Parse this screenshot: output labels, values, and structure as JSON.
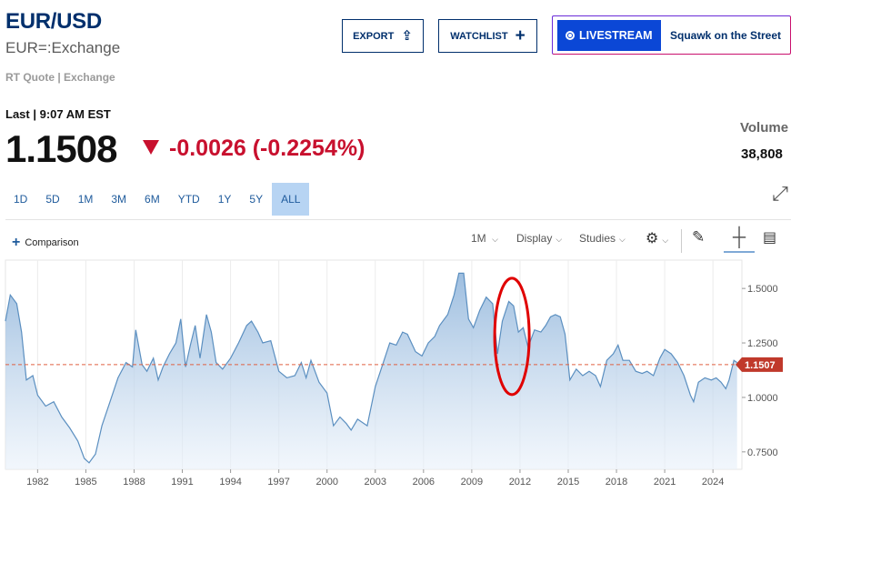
{
  "header": {
    "title": "EUR/USD",
    "subtitle": "EUR=:Exchange",
    "quote_source": "RT Quote | Exchange"
  },
  "actions": {
    "export_label": "EXPORT",
    "export_icon": "share-icon",
    "watchlist_label": "WATCHLIST",
    "watchlist_icon": "plus-icon"
  },
  "livestream": {
    "label": "LIVESTREAM",
    "show": "Squawk on the Street",
    "accent": "#0b47d6"
  },
  "quote": {
    "last_label": "Last | 9:07 AM EST",
    "price": "1.1508",
    "change": "-0.0026 (-0.2254%)",
    "direction_icon": "down-triangle-icon",
    "change_color": "#c8102e",
    "volume_label": "Volume",
    "volume_value": "38,808"
  },
  "ranges": [
    {
      "label": "1D",
      "active": false
    },
    {
      "label": "5D",
      "active": false
    },
    {
      "label": "1M",
      "active": false
    },
    {
      "label": "3M",
      "active": false
    },
    {
      "label": "6M",
      "active": false
    },
    {
      "label": "YTD",
      "active": false
    },
    {
      "label": "1Y",
      "active": false
    },
    {
      "label": "5Y",
      "active": false
    },
    {
      "label": "ALL",
      "active": true
    }
  ],
  "toolbar": {
    "comparison_label": "Comparison",
    "interval_label": "1M",
    "display_label": "Display",
    "studies_label": "Studies",
    "settings_icon": "gear-icon",
    "draw_icon": "pencil-icon",
    "crosshair_icon": "crosshair-icon",
    "news_icon": "news-icon",
    "expand_icon": "expand-icon"
  },
  "chart_data": {
    "type": "area",
    "series": [
      {
        "name": "EUR/USD",
        "x": [
          1980.0,
          1980.3,
          1980.7,
          1981.0,
          1981.3,
          1981.7,
          1982.0,
          1982.5,
          1983.0,
          1983.5,
          1984.0,
          1984.5,
          1984.9,
          1985.2,
          1985.6,
          1986.0,
          1986.5,
          1987.0,
          1987.5,
          1987.9,
          1988.1,
          1988.5,
          1988.8,
          1989.2,
          1989.5,
          1989.8,
          1990.2,
          1990.6,
          1990.9,
          1991.2,
          1991.5,
          1991.8,
          1992.1,
          1992.5,
          1992.8,
          1993.1,
          1993.5,
          1994.0,
          1994.5,
          1995.0,
          1995.3,
          1995.7,
          1996.0,
          1996.5,
          1997.0,
          1997.5,
          1998.0,
          1998.4,
          1998.7,
          1999.0,
          1999.5,
          2000.0,
          2000.4,
          2000.8,
          2001.2,
          2001.5,
          2001.9,
          2002.5,
          2003.0,
          2003.5,
          2003.9,
          2004.3,
          2004.7,
          2005.0,
          2005.5,
          2005.9,
          2006.3,
          2006.7,
          2007.0,
          2007.5,
          2007.9,
          2008.2,
          2008.5,
          2008.8,
          2009.1,
          2009.5,
          2009.9,
          2010.3,
          2010.6,
          2010.9,
          2011.3,
          2011.6,
          2011.9,
          2012.2,
          2012.5,
          2012.9,
          2013.3,
          2013.6,
          2013.9,
          2014.2,
          2014.5,
          2014.8,
          2015.1,
          2015.5,
          2015.9,
          2016.3,
          2016.7,
          2017.0,
          2017.4,
          2017.8,
          2018.1,
          2018.4,
          2018.8,
          2019.2,
          2019.6,
          2019.9,
          2020.3,
          2020.7,
          2021.0,
          2021.4,
          2021.8,
          2022.2,
          2022.6,
          2022.8,
          2023.1,
          2023.5,
          2023.9,
          2024.2,
          2024.5,
          2024.8,
          2025.0,
          2025.3,
          2025.5
        ],
        "y": [
          1.35,
          1.47,
          1.43,
          1.3,
          1.08,
          1.1,
          1.01,
          0.96,
          0.98,
          0.91,
          0.86,
          0.8,
          0.72,
          0.7,
          0.74,
          0.87,
          0.98,
          1.09,
          1.16,
          1.14,
          1.31,
          1.15,
          1.12,
          1.18,
          1.08,
          1.14,
          1.2,
          1.25,
          1.36,
          1.14,
          1.24,
          1.33,
          1.18,
          1.38,
          1.3,
          1.16,
          1.13,
          1.18,
          1.25,
          1.33,
          1.35,
          1.3,
          1.25,
          1.26,
          1.12,
          1.09,
          1.1,
          1.16,
          1.09,
          1.17,
          1.07,
          1.02,
          0.87,
          0.91,
          0.88,
          0.85,
          0.9,
          0.87,
          1.05,
          1.16,
          1.25,
          1.24,
          1.3,
          1.29,
          1.21,
          1.19,
          1.25,
          1.28,
          1.33,
          1.38,
          1.47,
          1.57,
          1.57,
          1.36,
          1.32,
          1.4,
          1.46,
          1.43,
          1.2,
          1.35,
          1.44,
          1.42,
          1.3,
          1.32,
          1.23,
          1.31,
          1.3,
          1.33,
          1.37,
          1.38,
          1.37,
          1.29,
          1.08,
          1.13,
          1.1,
          1.12,
          1.1,
          1.05,
          1.17,
          1.2,
          1.24,
          1.17,
          1.17,
          1.12,
          1.11,
          1.12,
          1.1,
          1.18,
          1.22,
          1.2,
          1.16,
          1.1,
          1.01,
          0.98,
          1.07,
          1.09,
          1.08,
          1.09,
          1.07,
          1.04,
          1.08,
          1.17,
          1.16
        ]
      }
    ],
    "x_ticks": [
      "1982",
      "1985",
      "1988",
      "1991",
      "1994",
      "1997",
      "2000",
      "2003",
      "2006",
      "2009",
      "2012",
      "2015",
      "2018",
      "2021",
      "2024"
    ],
    "y_ticks": [
      "0.7500",
      "1.0000",
      "1.2500",
      "1.5000"
    ],
    "xlim": [
      1980.0,
      2025.8
    ],
    "ylim": [
      0.67,
      1.63
    ],
    "last_value": 1.1507,
    "last_value_label": "1.1507",
    "line_color": "#5b8fc0",
    "reference_line_color": "#e06040",
    "highlight": {
      "x_center": 2011.5,
      "y_center": 1.28,
      "color": "#e00000"
    },
    "grid": true
  }
}
